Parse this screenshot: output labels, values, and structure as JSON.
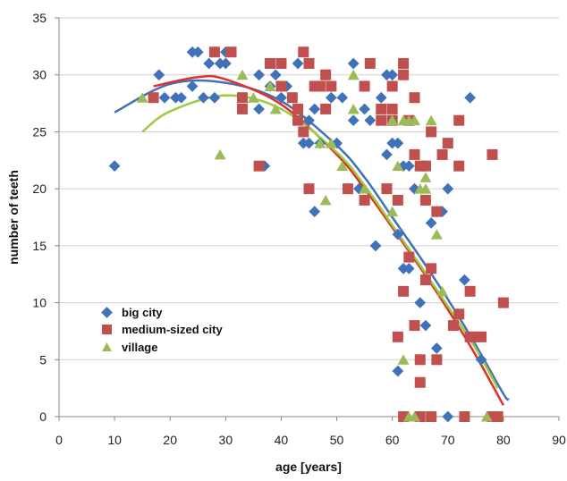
{
  "chart_data": {
    "type": "scatter",
    "title": "",
    "xlabel": "age [years]",
    "ylabel": "number of teeth",
    "xlim": [
      0,
      90
    ],
    "ylim": [
      0,
      35
    ],
    "xticks": [
      "0",
      "10",
      "20",
      "30",
      "40",
      "50",
      "60",
      "70",
      "80",
      "90"
    ],
    "yticks": [
      "0",
      "5",
      "10",
      "15",
      "20",
      "25",
      "30",
      "35"
    ],
    "grid": "horizontal",
    "legend_position": "lower-left",
    "series": [
      {
        "name": "big city",
        "marker": "diamond",
        "color": "#3F72B8",
        "points": [
          [
            10,
            22
          ],
          [
            18,
            30
          ],
          [
            19,
            28
          ],
          [
            21,
            28
          ],
          [
            22,
            28
          ],
          [
            24,
            29
          ],
          [
            24,
            32
          ],
          [
            25,
            32
          ],
          [
            26,
            28
          ],
          [
            27,
            31
          ],
          [
            28,
            28
          ],
          [
            29,
            31
          ],
          [
            30,
            31
          ],
          [
            30,
            32
          ],
          [
            36,
            30
          ],
          [
            36,
            27
          ],
          [
            37,
            22
          ],
          [
            38,
            29
          ],
          [
            39,
            30
          ],
          [
            40,
            28
          ],
          [
            41,
            29
          ],
          [
            43,
            31
          ],
          [
            44,
            24
          ],
          [
            45,
            26
          ],
          [
            45,
            24
          ],
          [
            46,
            27
          ],
          [
            46,
            18
          ],
          [
            47,
            24
          ],
          [
            48,
            27
          ],
          [
            48,
            30
          ],
          [
            49,
            28
          ],
          [
            50,
            24
          ],
          [
            51,
            28
          ],
          [
            52,
            20
          ],
          [
            53,
            26
          ],
          [
            53,
            31
          ],
          [
            54,
            20
          ],
          [
            55,
            27
          ],
          [
            56,
            26
          ],
          [
            57,
            15
          ],
          [
            58,
            28
          ],
          [
            59,
            23
          ],
          [
            59,
            30
          ],
          [
            60,
            30
          ],
          [
            60,
            24
          ],
          [
            61,
            24
          ],
          [
            61,
            16
          ],
          [
            61,
            4
          ],
          [
            62,
            13
          ],
          [
            62,
            22
          ],
          [
            63,
            22
          ],
          [
            63,
            13
          ],
          [
            64,
            20
          ],
          [
            65,
            10
          ],
          [
            65,
            0
          ],
          [
            66,
            19
          ],
          [
            66,
            8
          ],
          [
            67,
            17
          ],
          [
            68,
            6
          ],
          [
            68,
            18
          ],
          [
            69,
            18
          ],
          [
            70,
            20
          ],
          [
            70,
            0
          ],
          [
            73,
            12
          ],
          [
            74,
            28
          ],
          [
            76,
            5
          ],
          [
            80,
            10
          ]
        ]
      },
      {
        "name": "medium-sized city",
        "marker": "square",
        "color": "#C0504D",
        "points": [
          [
            17,
            28
          ],
          [
            28,
            32
          ],
          [
            31,
            32
          ],
          [
            33,
            28
          ],
          [
            33,
            27
          ],
          [
            36,
            22
          ],
          [
            38,
            31
          ],
          [
            40,
            29
          ],
          [
            40,
            31
          ],
          [
            42,
            28
          ],
          [
            43,
            27
          ],
          [
            43,
            26
          ],
          [
            44,
            32
          ],
          [
            44,
            25
          ],
          [
            45,
            31
          ],
          [
            45,
            20
          ],
          [
            46,
            29
          ],
          [
            47,
            29
          ],
          [
            48,
            30
          ],
          [
            48,
            27
          ],
          [
            49,
            29
          ],
          [
            52,
            20
          ],
          [
            55,
            29
          ],
          [
            55,
            19
          ],
          [
            56,
            31
          ],
          [
            58,
            26
          ],
          [
            58,
            27
          ],
          [
            59,
            20
          ],
          [
            60,
            26
          ],
          [
            60,
            27
          ],
          [
            60,
            29
          ],
          [
            61,
            19
          ],
          [
            61,
            7
          ],
          [
            62,
            31
          ],
          [
            62,
            30
          ],
          [
            62,
            11
          ],
          [
            62,
            0
          ],
          [
            63,
            14
          ],
          [
            63,
            26
          ],
          [
            64,
            28
          ],
          [
            64,
            23
          ],
          [
            64,
            8
          ],
          [
            65,
            3
          ],
          [
            65,
            5
          ],
          [
            65,
            22
          ],
          [
            65,
            0
          ],
          [
            66,
            12
          ],
          [
            66,
            19
          ],
          [
            66,
            22
          ],
          [
            67,
            13
          ],
          [
            67,
            0
          ],
          [
            67,
            25
          ],
          [
            68,
            5
          ],
          [
            68,
            18
          ],
          [
            69,
            23
          ],
          [
            70,
            24
          ],
          [
            71,
            8
          ],
          [
            72,
            9
          ],
          [
            72,
            22
          ],
          [
            72,
            26
          ],
          [
            73,
            0
          ],
          [
            74,
            7
          ],
          [
            74,
            11
          ],
          [
            75,
            7
          ],
          [
            76,
            7
          ],
          [
            78,
            23
          ],
          [
            78,
            0
          ],
          [
            79,
            0
          ],
          [
            80,
            10
          ]
        ]
      },
      {
        "name": "village",
        "marker": "triangle",
        "color": "#9BBB59",
        "points": [
          [
            15,
            28
          ],
          [
            29,
            23
          ],
          [
            33,
            30
          ],
          [
            35,
            28
          ],
          [
            38,
            29
          ],
          [
            39,
            27
          ],
          [
            47,
            24
          ],
          [
            48,
            19
          ],
          [
            49,
            24
          ],
          [
            51,
            22
          ],
          [
            53,
            30
          ],
          [
            53,
            27
          ],
          [
            55,
            20
          ],
          [
            60,
            26
          ],
          [
            60,
            18
          ],
          [
            61,
            22
          ],
          [
            62,
            5
          ],
          [
            62,
            26
          ],
          [
            63,
            0
          ],
          [
            63,
            26
          ],
          [
            64,
            0
          ],
          [
            64,
            26
          ],
          [
            65,
            20
          ],
          [
            66,
            20
          ],
          [
            66,
            21
          ],
          [
            67,
            26
          ],
          [
            68,
            16
          ],
          [
            69,
            11
          ],
          [
            77,
            0
          ]
        ]
      }
    ],
    "trendlines": [
      {
        "series": "big city",
        "type": "polynomial",
        "color": "#3F72B8",
        "x": [
          10,
          20,
          30,
          40,
          50,
          55,
          60,
          65,
          70,
          75,
          80,
          81
        ],
        "y": [
          26.7,
          29.2,
          29.3,
          27.7,
          23.8,
          21.0,
          17.5,
          14.0,
          10.3,
          6.3,
          2.0,
          1.5
        ]
      },
      {
        "series": "medium-sized city",
        "type": "polynomial",
        "color": "#E0302A",
        "x": [
          17,
          25,
          30,
          40,
          50,
          55,
          60,
          65,
          70,
          75,
          80
        ],
        "y": [
          29.0,
          29.8,
          29.6,
          27.4,
          23.0,
          20.0,
          16.6,
          13.1,
          9.4,
          5.4,
          1.0
        ]
      },
      {
        "series": "village",
        "type": "polynomial",
        "color": "#9BCB3C",
        "x": [
          15,
          20,
          30,
          40,
          50,
          55,
          60,
          65,
          70,
          75,
          79
        ],
        "y": [
          25.0,
          26.8,
          28.2,
          27.0,
          23.2,
          20.3,
          16.8,
          13.3,
          9.7,
          6.0,
          2.5
        ]
      }
    ]
  }
}
